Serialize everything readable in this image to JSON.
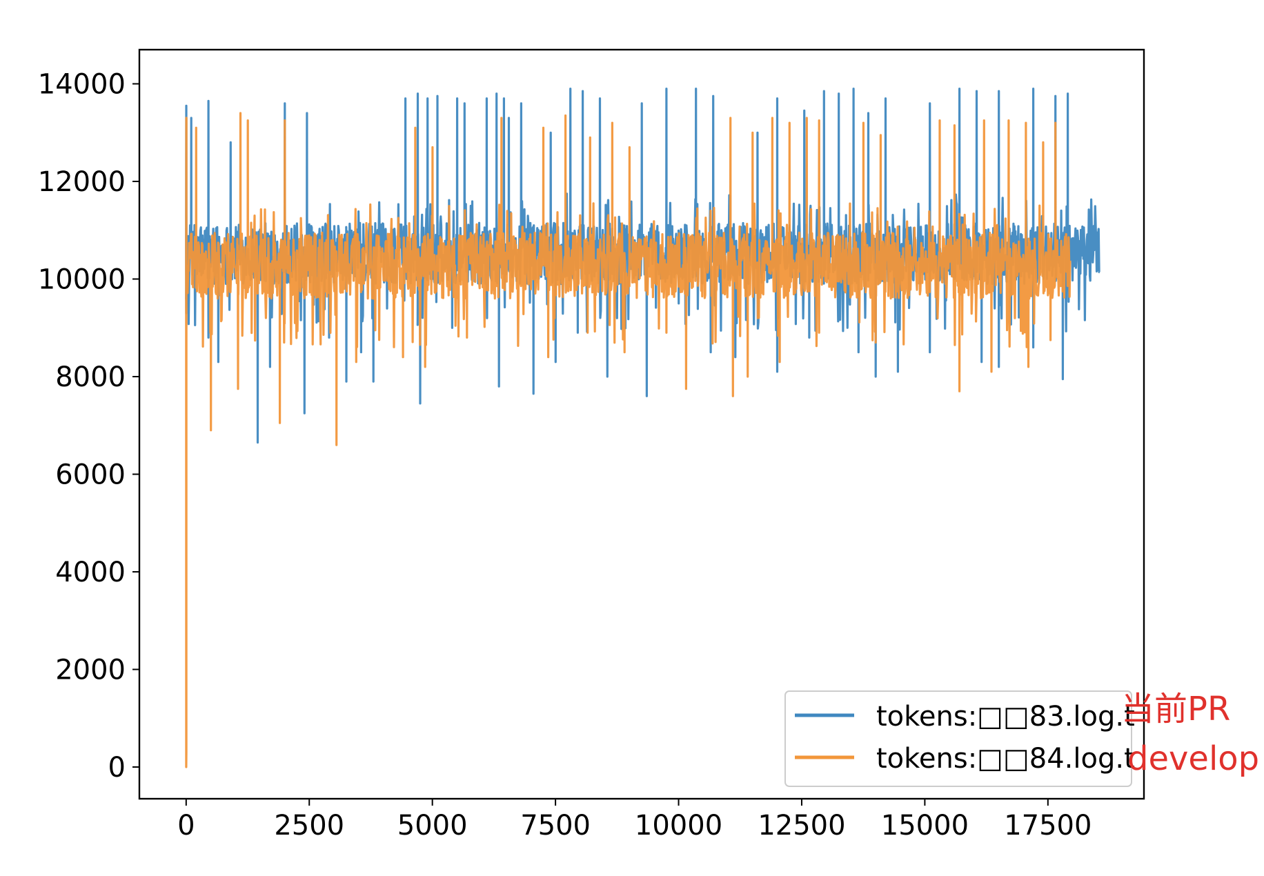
{
  "chart_data": {
    "type": "line",
    "title": "",
    "xlabel": "",
    "ylabel": "",
    "xlim": [
      -950,
      19450
    ],
    "ylim": [
      -650,
      14700
    ],
    "x_ticks": [
      0,
      2500,
      5000,
      7500,
      10000,
      12500,
      15000,
      17500
    ],
    "x_tick_labels": [
      "0",
      "2500",
      "5000",
      "7500",
      "10000",
      "12500",
      "15000",
      "17500"
    ],
    "y_ticks": [
      0,
      2000,
      4000,
      6000,
      8000,
      10000,
      12000,
      14000
    ],
    "y_tick_labels": [
      "0",
      "2000",
      "4000",
      "6000",
      "8000",
      "10000",
      "12000",
      "14000"
    ],
    "grid": false,
    "legend_position": "lower-right",
    "series": [
      {
        "name": "tokens:□□83.log.t",
        "color": "#3f88c0",
        "x_max": 18550,
        "baseline": 10650,
        "band": [
          9900,
          11150
        ],
        "peaks": [
          [
            0,
            13550
          ],
          [
            100,
            13300
          ],
          [
            450,
            13650
          ],
          [
            900,
            12800
          ],
          [
            2000,
            13600
          ],
          [
            2450,
            13400
          ],
          [
            4450,
            13700
          ],
          [
            4700,
            13800
          ],
          [
            4900,
            13700
          ],
          [
            5100,
            13750
          ],
          [
            5500,
            13700
          ],
          [
            5650,
            13600
          ],
          [
            6100,
            13700
          ],
          [
            6300,
            13800
          ],
          [
            6450,
            13700
          ],
          [
            6550,
            13300
          ],
          [
            6800,
            13600
          ],
          [
            7400,
            13000
          ],
          [
            7800,
            13900
          ],
          [
            8050,
            13850
          ],
          [
            8400,
            13700
          ],
          [
            9250,
            13600
          ],
          [
            9750,
            13900
          ],
          [
            10350,
            13900
          ],
          [
            10700,
            13750
          ],
          [
            11600,
            13000
          ],
          [
            12000,
            13700
          ],
          [
            12550,
            13450
          ],
          [
            12950,
            13850
          ],
          [
            13250,
            13800
          ],
          [
            13550,
            13900
          ],
          [
            13850,
            13400
          ],
          [
            14200,
            13700
          ],
          [
            15100,
            13600
          ],
          [
            15700,
            13900
          ],
          [
            16050,
            13850
          ],
          [
            16500,
            13850
          ],
          [
            17200,
            13900
          ],
          [
            17650,
            13750
          ],
          [
            17900,
            13800
          ]
        ],
        "troughs": [
          [
            0,
            9300
          ],
          [
            450,
            8800
          ],
          [
            650,
            8300
          ],
          [
            1450,
            6650
          ],
          [
            1700,
            8200
          ],
          [
            2400,
            7250
          ],
          [
            2900,
            8800
          ],
          [
            3250,
            7900
          ],
          [
            3550,
            8500
          ],
          [
            3800,
            7900
          ],
          [
            4750,
            7450
          ],
          [
            5400,
            9000
          ],
          [
            6350,
            7800
          ],
          [
            7050,
            7650
          ],
          [
            7500,
            8300
          ],
          [
            7950,
            8900
          ],
          [
            8550,
            8000
          ],
          [
            9350,
            7600
          ],
          [
            10000,
            9500
          ],
          [
            10650,
            8500
          ],
          [
            11150,
            8400
          ],
          [
            12000,
            8100
          ],
          [
            12650,
            8800
          ],
          [
            13650,
            8500
          ],
          [
            14000,
            8000
          ],
          [
            14450,
            8100
          ],
          [
            15100,
            8500
          ],
          [
            16150,
            8300
          ],
          [
            16500,
            8200
          ],
          [
            17200,
            8600
          ],
          [
            17800,
            7950
          ]
        ]
      },
      {
        "name": "tokens:□□84.log.t",
        "color": "#f2963a",
        "x_max": 17950,
        "baseline": 10300,
        "band": [
          9600,
          10950
        ],
        "spike_to_zero_x": 0,
        "peaks": [
          [
            0,
            13300
          ],
          [
            200,
            13100
          ],
          [
            1100,
            13400
          ],
          [
            1250,
            13250
          ],
          [
            2000,
            13250
          ],
          [
            4650,
            13100
          ],
          [
            5000,
            12700
          ],
          [
            6400,
            13300
          ],
          [
            7250,
            13100
          ],
          [
            7700,
            13350
          ],
          [
            8200,
            12900
          ],
          [
            8650,
            13200
          ],
          [
            9000,
            12700
          ],
          [
            11050,
            13300
          ],
          [
            11500,
            13000
          ],
          [
            11900,
            13300
          ],
          [
            12250,
            13200
          ],
          [
            12600,
            13300
          ],
          [
            12850,
            13250
          ],
          [
            13750,
            13200
          ],
          [
            14100,
            12950
          ],
          [
            15300,
            13250
          ],
          [
            15600,
            13150
          ],
          [
            16200,
            13250
          ],
          [
            16700,
            13250
          ],
          [
            17050,
            13200
          ],
          [
            17400,
            12800
          ],
          [
            17650,
            13200
          ]
        ],
        "troughs": [
          [
            500,
            6900
          ],
          [
            1050,
            7750
          ],
          [
            1900,
            7050
          ],
          [
            3050,
            6600
          ],
          [
            3450,
            8300
          ],
          [
            4400,
            8400
          ],
          [
            4850,
            8200
          ],
          [
            5700,
            8800
          ],
          [
            7350,
            8400
          ],
          [
            8150,
            8900
          ],
          [
            8900,
            8500
          ],
          [
            9750,
            8900
          ],
          [
            10150,
            7750
          ],
          [
            11100,
            7600
          ],
          [
            11400,
            8000
          ],
          [
            12050,
            8300
          ],
          [
            12850,
            8900
          ],
          [
            14000,
            8700
          ],
          [
            15700,
            7700
          ],
          [
            16350,
            8100
          ],
          [
            17100,
            8200
          ],
          [
            17550,
            8750
          ]
        ]
      }
    ],
    "annotations": [
      {
        "text": "当前PR",
        "color": "#e0312c"
      },
      {
        "text": "develop",
        "color": "#e0312c"
      }
    ]
  }
}
